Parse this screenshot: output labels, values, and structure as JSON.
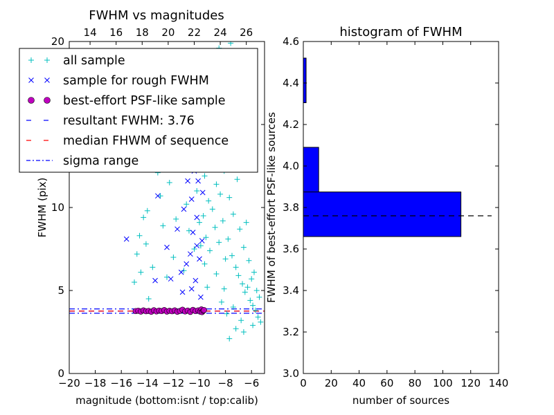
{
  "chart_data": [
    {
      "type": "scatter",
      "title": "FWHM vs magnitudes",
      "xlabel": "magnitude (bottom:isnt / top:calib)",
      "ylabel": "FWHM (pix)",
      "xlim": [
        -20,
        -5
      ],
      "ylim": [
        0,
        20
      ],
      "x_ticks": [
        -20,
        -18,
        -16,
        -14,
        -12,
        -10,
        -8,
        -6
      ],
      "x_tick_labels": [
        "−20",
        "−18",
        "−16",
        "−14",
        "−12",
        "−10",
        "−8",
        "−6"
      ],
      "top_x_ticks": [
        14,
        16,
        18,
        20,
        22,
        24,
        26
      ],
      "top_x_tick_labels": [
        "14",
        "16",
        "18",
        "20",
        "22",
        "24",
        "26"
      ],
      "top_x_offset": 32.4,
      "y_ticks": [
        0,
        5,
        10,
        15,
        20
      ],
      "y_tick_labels": [
        "0",
        "5",
        "10",
        "15",
        "20"
      ],
      "legend": {
        "placement": "upper-left",
        "entries": [
          {
            "label": "all sample",
            "marker": "plus",
            "color": "#00bfbf"
          },
          {
            "label": "sample for rough FWHM",
            "marker": "x",
            "color": "#0000ff"
          },
          {
            "label": "best-effort PSF-like sample",
            "marker": "circle",
            "color": "#bf00bf"
          },
          {
            "label": "resultant FWHM: 3.76",
            "marker": "dashed",
            "color": "#0000ff"
          },
          {
            "label": "median FHWM of sequence",
            "marker": "dashed",
            "color": "#ff0000"
          },
          {
            "label": "sigma range",
            "marker": "dashdot",
            "color": "#0000ff"
          }
        ]
      },
      "series": [
        {
          "name": "all sample",
          "color": "#00bfbf",
          "points": [
            [
              -15.0,
              5.5
            ],
            [
              -14.8,
              7.2
            ],
            [
              -14.6,
              8.3
            ],
            [
              -14.5,
              6.1
            ],
            [
              -14.3,
              9.4
            ],
            [
              -14.0,
              9.8
            ],
            [
              -14.1,
              7.8
            ],
            [
              -13.9,
              4.5
            ],
            [
              -13.6,
              6.4
            ],
            [
              -13.2,
              12.1
            ],
            [
              -13.0,
              10.7
            ],
            [
              -12.8,
              8.9
            ],
            [
              -12.5,
              5.8
            ],
            [
              -12.3,
              11.5
            ],
            [
              -12.0,
              7.0
            ],
            [
              -11.8,
              9.3
            ],
            [
              -11.5,
              13.2
            ],
            [
              -11.2,
              6.2
            ],
            [
              -11.0,
              10.2
            ],
            [
              -10.8,
              8.6
            ],
            [
              -10.6,
              12.8
            ],
            [
              -10.4,
              7.5
            ],
            [
              -10.2,
              11.0
            ],
            [
              -10.0,
              9.1
            ],
            [
              -9.8,
              14.4
            ],
            [
              -9.7,
              9.5
            ],
            [
              -9.6,
              11.9
            ],
            [
              -9.5,
              8.2
            ],
            [
              -9.4,
              13.6
            ],
            [
              -9.3,
              10.4
            ],
            [
              -9.2,
              7.4
            ],
            [
              -9.1,
              12.5
            ],
            [
              -9.0,
              9.9
            ],
            [
              -8.9,
              15.2
            ],
            [
              -8.8,
              8.8
            ],
            [
              -8.7,
              11.4
            ],
            [
              -8.6,
              13.9
            ],
            [
              -8.5,
              7.9
            ],
            [
              -8.4,
              10.8
            ],
            [
              -8.3,
              16.4
            ],
            [
              -8.2,
              9.2
            ],
            [
              -8.1,
              12.2
            ],
            [
              -8.0,
              6.9
            ],
            [
              -7.9,
              14.6
            ],
            [
              -7.8,
              8.1
            ],
            [
              -7.7,
              10.6
            ],
            [
              -7.6,
              13.1
            ],
            [
              -7.5,
              7.1
            ],
            [
              -7.4,
              9.6
            ],
            [
              -7.3,
              17.8
            ],
            [
              -7.2,
              6.4
            ],
            [
              -7.1,
              11.7
            ],
            [
              -7.0,
              5.9
            ],
            [
              -6.9,
              8.7
            ],
            [
              -6.8,
              14.1
            ],
            [
              -6.7,
              5.4
            ],
            [
              -6.6,
              7.6
            ],
            [
              -6.5,
              4.9
            ],
            [
              -6.4,
              9.1
            ],
            [
              -6.3,
              5.2
            ],
            [
              -6.2,
              6.8
            ],
            [
              -6.1,
              4.4
            ],
            [
              -6.0,
              5.7
            ],
            [
              -5.9,
              4.1
            ],
            [
              -5.8,
              6.1
            ],
            [
              -5.7,
              3.8
            ],
            [
              -5.6,
              5.0
            ],
            [
              -5.5,
              3.4
            ],
            [
              -5.4,
              4.6
            ],
            [
              -5.3,
              3.1
            ],
            [
              -8.5,
              19.6
            ],
            [
              -7.6,
              19.9
            ],
            [
              -8.0,
              18.7
            ],
            [
              -7.3,
              19.3
            ],
            [
              -9.1,
              17.1
            ],
            [
              -8.9,
              16.0
            ],
            [
              -7.7,
              2.1
            ],
            [
              -7.2,
              2.7
            ],
            [
              -6.8,
              3.2
            ],
            [
              -8.3,
              4.3
            ],
            [
              -7.9,
              3.6
            ],
            [
              -6.6,
              2.5
            ],
            [
              -5.9,
              2.9
            ],
            [
              -9.4,
              5.2
            ],
            [
              -8.7,
              6.0
            ],
            [
              -9.6,
              6.6
            ],
            [
              -9.9,
              7.7
            ],
            [
              -8.1,
              5.1
            ],
            [
              -7.4,
              4.0
            ]
          ]
        },
        {
          "name": "sample for rough FWHM",
          "color": "#0000ff",
          "points": [
            [
              -15.6,
              8.1
            ],
            [
              -13.2,
              10.7
            ],
            [
              -13.4,
              5.6
            ],
            [
              -12.5,
              7.6
            ],
            [
              -12.2,
              5.7
            ],
            [
              -11.7,
              8.7
            ],
            [
              -11.4,
              6.1
            ],
            [
              -11.2,
              9.9
            ],
            [
              -11.0,
              6.6
            ],
            [
              -10.8,
              13.4
            ],
            [
              -10.7,
              7.2
            ],
            [
              -10.6,
              10.5
            ],
            [
              -10.5,
              8.5
            ],
            [
              -10.4,
              12.2
            ],
            [
              -10.3,
              5.6
            ],
            [
              -10.2,
              9.4
            ],
            [
              -10.1,
              11.6
            ],
            [
              -10.0,
              6.9
            ],
            [
              -9.9,
              14.4
            ],
            [
              -9.8,
              8.0
            ],
            [
              -9.75,
              10.9
            ],
            [
              -10.9,
              11.6
            ],
            [
              -11.1,
              12.4
            ],
            [
              -10.5,
              14.1
            ],
            [
              -10.3,
              13.0
            ],
            [
              -10.0,
              12.9
            ],
            [
              -9.9,
              4.6
            ],
            [
              -10.6,
              5.1
            ],
            [
              -11.3,
              4.9
            ],
            [
              -10.2,
              7.7
            ]
          ]
        },
        {
          "name": "best-effort PSF-like sample",
          "color": "#bf00bf",
          "points": [
            [
              -14.9,
              3.76
            ],
            [
              -14.7,
              3.78
            ],
            [
              -14.5,
              3.73
            ],
            [
              -14.3,
              3.8
            ],
            [
              -14.1,
              3.75
            ],
            [
              -13.9,
              3.77
            ],
            [
              -13.7,
              3.72
            ],
            [
              -13.5,
              3.81
            ],
            [
              -13.3,
              3.74
            ],
            [
              -13.1,
              3.79
            ],
            [
              -12.9,
              3.76
            ],
            [
              -12.7,
              3.82
            ],
            [
              -12.5,
              3.73
            ],
            [
              -12.3,
              3.78
            ],
            [
              -12.1,
              3.75
            ],
            [
              -11.9,
              3.8
            ],
            [
              -11.7,
              3.72
            ],
            [
              -11.5,
              3.77
            ],
            [
              -11.3,
              3.84
            ],
            [
              -11.1,
              3.74
            ],
            [
              -10.9,
              3.79
            ],
            [
              -10.7,
              3.71
            ],
            [
              -10.5,
              3.83
            ],
            [
              -10.3,
              3.76
            ],
            [
              -10.1,
              3.8
            ],
            [
              -9.95,
              3.73
            ],
            [
              -9.85,
              3.86
            ],
            [
              -9.8,
              3.7
            ],
            [
              -9.7,
              3.78
            ],
            [
              -9.65,
              3.82
            ]
          ]
        }
      ],
      "hlines": [
        {
          "name": "resultant FWHM: 3.76",
          "y": 3.76,
          "style": "dashed",
          "color": "#0000ff"
        },
        {
          "name": "median FHWM of sequence",
          "y": 3.76,
          "style": "dashed",
          "color": "#ff0000"
        },
        {
          "name": "sigma range",
          "y": 3.89,
          "style": "dashdot",
          "color": "#0000ff"
        },
        {
          "name": "sigma range",
          "y": 3.63,
          "style": "dashdot",
          "color": "#0000ff"
        }
      ]
    },
    {
      "type": "bar",
      "orientation": "horizontal",
      "title": "histogram of FWHM",
      "xlabel": "number of sources",
      "ylabel": "FWHM of best-effort PSF-like sources",
      "xlim": [
        0,
        140
      ],
      "ylim": [
        3.0,
        4.6
      ],
      "x_ticks": [
        0,
        20,
        40,
        60,
        80,
        100,
        120,
        140
      ],
      "x_tick_labels": [
        "0",
        "20",
        "40",
        "60",
        "80",
        "100",
        "120",
        "140"
      ],
      "y_ticks": [
        3.0,
        3.2,
        3.4,
        3.6,
        3.8,
        4.0,
        4.2,
        4.4,
        4.6
      ],
      "y_tick_labels": [
        "3.0",
        "3.2",
        "3.4",
        "3.6",
        "3.8",
        "4.0",
        "4.2",
        "4.4",
        "4.6"
      ],
      "bins": [
        {
          "low": 3.66,
          "high": 3.875,
          "count": 113
        },
        {
          "low": 3.875,
          "high": 4.09,
          "count": 11
        },
        {
          "low": 4.09,
          "high": 4.305,
          "count": 0
        },
        {
          "low": 4.305,
          "high": 4.52,
          "count": 2
        }
      ],
      "bar_color": "#0000ff",
      "hline": {
        "y": 3.76,
        "style": "dashed",
        "color": "#000000",
        "xmax": 135
      }
    }
  ]
}
